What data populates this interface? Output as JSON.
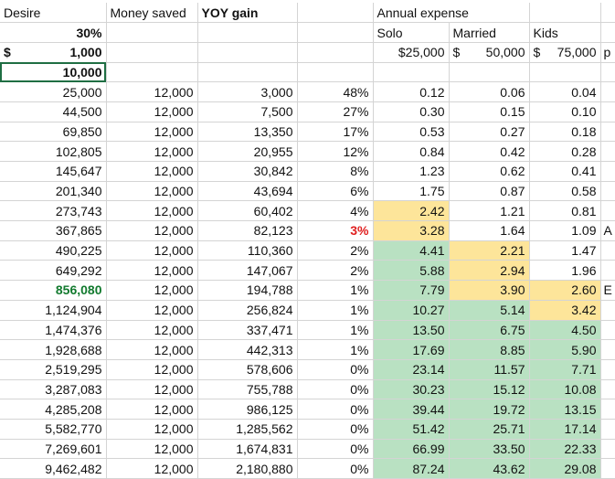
{
  "headers": {
    "desire": "Desire",
    "money_saved": "Money saved",
    "yoy_gain": "YOY gain",
    "annual_expense": "Annual expense"
  },
  "sub": {
    "solo": "Solo",
    "married": "Married",
    "kids": "Kids"
  },
  "row2": {
    "pct": "30%"
  },
  "row3": {
    "currency": "$",
    "amount": "1,000",
    "solo": "$25,000",
    "married_currency": "$",
    "married": "50,000",
    "kids_currency": "$",
    "kids": "75,000",
    "cut": "p"
  },
  "row4": {
    "value": "10,000"
  },
  "rows": [
    {
      "desire": "25,000",
      "saved": "12,000",
      "gain": "3,000",
      "pct": "48%",
      "solo": "0.12",
      "married": "0.06",
      "kids": "0.04",
      "cut": ""
    },
    {
      "desire": "44,500",
      "saved": "12,000",
      "gain": "7,500",
      "pct": "27%",
      "solo": "0.30",
      "married": "0.15",
      "kids": "0.10",
      "cut": ""
    },
    {
      "desire": "69,850",
      "saved": "12,000",
      "gain": "13,350",
      "pct": "17%",
      "solo": "0.53",
      "married": "0.27",
      "kids": "0.18",
      "cut": ""
    },
    {
      "desire": "102,805",
      "saved": "12,000",
      "gain": "20,955",
      "pct": "12%",
      "solo": "0.84",
      "married": "0.42",
      "kids": "0.28",
      "cut": ""
    },
    {
      "desire": "145,647",
      "saved": "12,000",
      "gain": "30,842",
      "pct": "8%",
      "solo": "1.23",
      "married": "0.62",
      "kids": "0.41",
      "cut": ""
    },
    {
      "desire": "201,340",
      "saved": "12,000",
      "gain": "43,694",
      "pct": "6%",
      "solo": "1.75",
      "married": "0.87",
      "kids": "0.58",
      "cut": ""
    },
    {
      "desire": "273,743",
      "saved": "12,000",
      "gain": "60,402",
      "pct": "4%",
      "solo": "2.42",
      "married": "1.21",
      "kids": "0.81",
      "cut": ""
    },
    {
      "desire": "367,865",
      "saved": "12,000",
      "gain": "82,123",
      "pct": "3%",
      "solo": "3.28",
      "married": "1.64",
      "kids": "1.09",
      "cut": "A"
    },
    {
      "desire": "490,225",
      "saved": "12,000",
      "gain": "110,360",
      "pct": "2%",
      "solo": "4.41",
      "married": "2.21",
      "kids": "1.47",
      "cut": ""
    },
    {
      "desire": "649,292",
      "saved": "12,000",
      "gain": "147,067",
      "pct": "2%",
      "solo": "5.88",
      "married": "2.94",
      "kids": "1.96",
      "cut": ""
    },
    {
      "desire": "856,080",
      "saved": "12,000",
      "gain": "194,788",
      "pct": "1%",
      "solo": "7.79",
      "married": "3.90",
      "kids": "2.60",
      "cut": "E"
    },
    {
      "desire": "1,124,904",
      "saved": "12,000",
      "gain": "256,824",
      "pct": "1%",
      "solo": "10.27",
      "married": "5.14",
      "kids": "3.42",
      "cut": ""
    },
    {
      "desire": "1,474,376",
      "saved": "12,000",
      "gain": "337,471",
      "pct": "1%",
      "solo": "13.50",
      "married": "6.75",
      "kids": "4.50",
      "cut": ""
    },
    {
      "desire": "1,928,688",
      "saved": "12,000",
      "gain": "442,313",
      "pct": "1%",
      "solo": "17.69",
      "married": "8.85",
      "kids": "5.90",
      "cut": ""
    },
    {
      "desire": "2,519,295",
      "saved": "12,000",
      "gain": "578,606",
      "pct": "0%",
      "solo": "23.14",
      "married": "11.57",
      "kids": "7.71",
      "cut": ""
    },
    {
      "desire": "3,287,083",
      "saved": "12,000",
      "gain": "755,788",
      "pct": "0%",
      "solo": "30.23",
      "married": "15.12",
      "kids": "10.08",
      "cut": ""
    },
    {
      "desire": "4,285,208",
      "saved": "12,000",
      "gain": "986,125",
      "pct": "0%",
      "solo": "39.44",
      "married": "19.72",
      "kids": "13.15",
      "cut": ""
    },
    {
      "desire": "5,582,770",
      "saved": "12,000",
      "gain": "1,285,562",
      "pct": "0%",
      "solo": "51.42",
      "married": "25.71",
      "kids": "17.14",
      "cut": ""
    },
    {
      "desire": "7,269,601",
      "saved": "12,000",
      "gain": "1,674,831",
      "pct": "0%",
      "solo": "66.99",
      "married": "33.50",
      "kids": "22.33",
      "cut": ""
    },
    {
      "desire": "9,462,482",
      "saved": "12,000",
      "gain": "2,180,880",
      "pct": "0%",
      "solo": "87.24",
      "married": "43.62",
      "kids": "29.08",
      "cut": ""
    }
  ],
  "colors": {
    "yellow": "#fde59a",
    "green": "#b9e1c2",
    "green_text": "#127a2e",
    "red_text": "#e02020",
    "selection": "#1f6e43"
  }
}
